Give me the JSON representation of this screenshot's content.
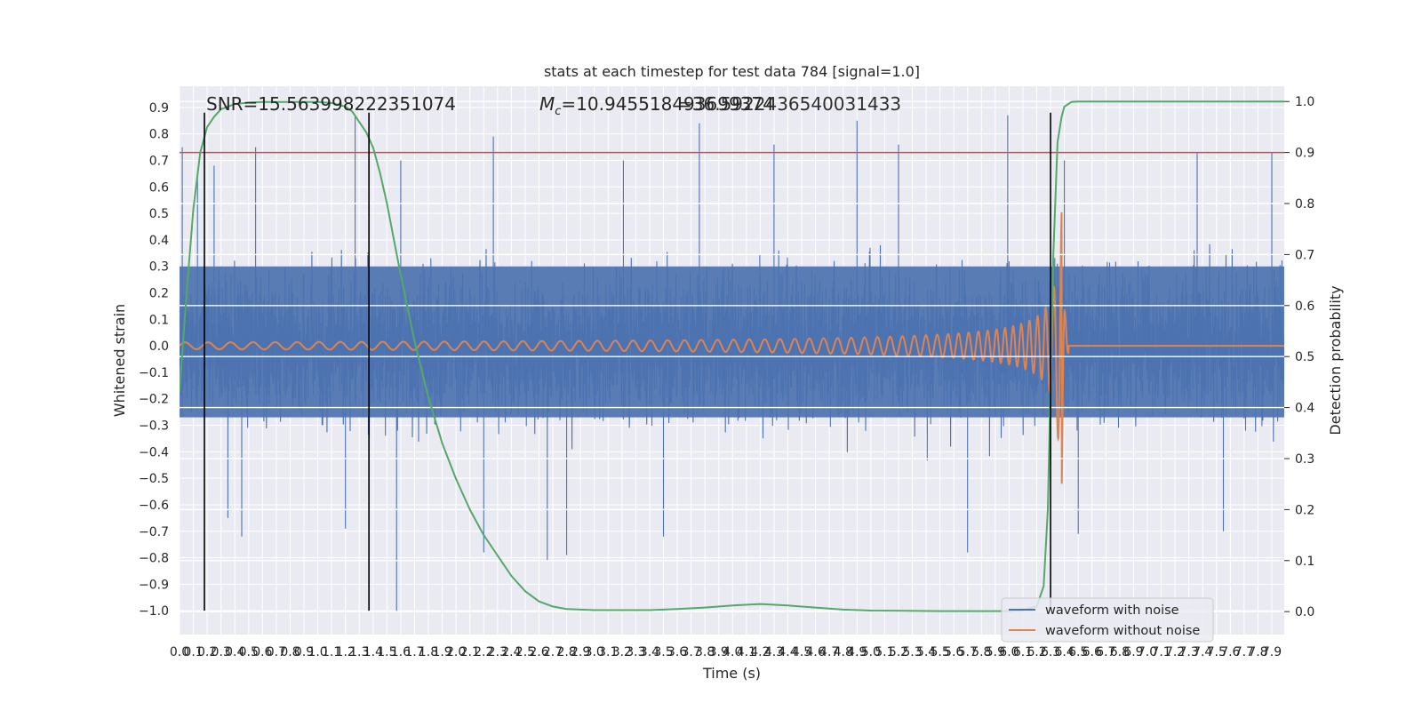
{
  "chart_data": {
    "type": "line",
    "title": "stats at each timestep for test data 784 [signal=1.0]",
    "xlabel": "Time (s)",
    "ylabel": "Whitened strain",
    "y2label": "Detection probability",
    "xlim": [
      0.0,
      7.99
    ],
    "ylim": [
      -1.09,
      0.98
    ],
    "y2lim": [
      -0.045,
      1.03
    ],
    "xticks": [
      0.0,
      0.1,
      0.2,
      0.3,
      0.4,
      0.5,
      0.6,
      0.7,
      0.8,
      0.9,
      1.0,
      1.1,
      1.2,
      1.3,
      1.4,
      1.5,
      1.6,
      1.7,
      1.8,
      1.9,
      2.0,
      2.1,
      2.2,
      2.3,
      2.4,
      2.5,
      2.6,
      2.7,
      2.8,
      2.9,
      3.0,
      3.1,
      3.2,
      3.3,
      3.4,
      3.5,
      3.6,
      3.7,
      3.8,
      3.9,
      4.0,
      4.1,
      4.2,
      4.3,
      4.4,
      4.5,
      4.6,
      4.7,
      4.8,
      4.9,
      5.0,
      5.1,
      5.2,
      5.3,
      5.4,
      5.5,
      5.6,
      5.7,
      5.8,
      5.9,
      6.0,
      6.1,
      6.2,
      6.3,
      6.4,
      6.5,
      6.6,
      6.7,
      6.8,
      6.9,
      7.0,
      7.1,
      7.2,
      7.3,
      7.4,
      7.5,
      7.6,
      7.7,
      7.8,
      7.9
    ],
    "xtick_labels": [
      "0.0",
      "0.1",
      "0.2",
      "0.3",
      "0.4",
      "0.5",
      "0.6",
      "0.7",
      "0.8",
      "0.9",
      "1.0",
      "1.1",
      "1.2",
      "1.3",
      "1.4",
      "1.5",
      "1.6",
      "1.7",
      "1.8",
      "1.9",
      "2.0",
      "2.1",
      "2.2",
      "2.3",
      "2.4",
      "2.5",
      "2.6",
      "2.7",
      "2.8",
      "2.9",
      "3.0",
      "3.1",
      "3.2",
      "3.3",
      "3.4",
      "3.5",
      "3.6",
      "3.7",
      "3.8",
      "3.9",
      "4.0",
      "4.1",
      "4.2",
      "4.3",
      "4.4",
      "4.5",
      "4.6",
      "4.7",
      "4.8",
      "4.9",
      "5.0",
      "5.1",
      "5.2",
      "5.3",
      "5.4",
      "5.5",
      "5.6",
      "5.7",
      "5.8",
      "5.9",
      "6.0",
      "6.1",
      "6.2",
      "6.3",
      "6.4",
      "6.5",
      "6.6",
      "6.7",
      "6.8",
      "6.9",
      "7.0",
      "7.1",
      "7.2",
      "7.3",
      "7.4",
      "7.5",
      "7.6",
      "7.7",
      "7.8",
      "7.9"
    ],
    "yticks": [
      -1.0,
      -0.9,
      -0.8,
      -0.7,
      -0.6,
      -0.5,
      -0.4,
      -0.3,
      -0.2,
      -0.1,
      0.0,
      0.1,
      0.2,
      0.3,
      0.4,
      0.5,
      0.6,
      0.7,
      0.8,
      0.9
    ],
    "ytick_labels": [
      "−1.0",
      "−0.9",
      "−0.8",
      "−0.7",
      "−0.6",
      "−0.5",
      "−0.4",
      "−0.3",
      "−0.2",
      "−0.1",
      "0.0",
      "0.1",
      "0.2",
      "0.3",
      "0.4",
      "0.5",
      "0.6",
      "0.7",
      "0.8",
      "0.9"
    ],
    "y2ticks": [
      0.0,
      0.1,
      0.2,
      0.3,
      0.4,
      0.5,
      0.6,
      0.7,
      0.8,
      0.9,
      1.0
    ],
    "y2tick_labels": [
      "0.0",
      "0.1",
      "0.2",
      "0.3",
      "0.4",
      "0.5",
      "0.6",
      "0.7",
      "0.8",
      "0.9",
      "1.0"
    ],
    "annotations": {
      "snr": "SNR=15.563998222351074",
      "mc_symbol": "M",
      "mc_sub": "c",
      "mc_value": "=10.945518493699374",
      "mc_overlap": "=36.5922436540031433"
    },
    "threshold": {
      "y2": 0.9,
      "color": "#c44e52"
    },
    "vertical_markers": [
      0.18,
      1.37,
      6.3
    ],
    "vertical_marker_range": [
      -1.0,
      0.88
    ],
    "noisy_waveform": {
      "name": "waveform with noise",
      "color": "#4c72b0",
      "envelope": [
        0.3,
        -0.27
      ],
      "sample_peaks": [
        {
          "x": 0.02,
          "y": 0.75
        },
        {
          "x": 0.13,
          "y": 0.65
        },
        {
          "x": 0.25,
          "y": 0.68
        },
        {
          "x": 0.55,
          "y": 0.75
        },
        {
          "x": 1.27,
          "y": 0.87
        },
        {
          "x": 1.6,
          "y": 0.7
        },
        {
          "x": 2.27,
          "y": 0.79
        },
        {
          "x": 3.21,
          "y": 0.7
        },
        {
          "x": 3.76,
          "y": 0.84
        },
        {
          "x": 4.3,
          "y": 0.76
        },
        {
          "x": 4.9,
          "y": 0.85
        },
        {
          "x": 5.2,
          "y": 0.76
        },
        {
          "x": 5.99,
          "y": 0.87
        },
        {
          "x": 6.4,
          "y": 0.7
        },
        {
          "x": 7.36,
          "y": 0.73
        },
        {
          "x": 7.9,
          "y": 0.73
        }
      ],
      "sample_troughs": [
        {
          "x": 0.35,
          "y": -0.65
        },
        {
          "x": 0.45,
          "y": -0.72
        },
        {
          "x": 1.2,
          "y": -0.69
        },
        {
          "x": 1.57,
          "y": -1.0
        },
        {
          "x": 2.2,
          "y": -0.78
        },
        {
          "x": 2.66,
          "y": -0.81
        },
        {
          "x": 2.8,
          "y": -0.79
        },
        {
          "x": 3.5,
          "y": -0.72
        },
        {
          "x": 5.7,
          "y": -0.78
        },
        {
          "x": 6.5,
          "y": -0.71
        },
        {
          "x": 7.55,
          "y": -0.7
        }
      ]
    },
    "clean_waveform": {
      "name": "waveform without noise",
      "color": "#dd8452",
      "chirp_start_s": 0.0,
      "merger_s": 6.38,
      "start_amplitude": 0.013,
      "peak_amplitude": 0.52,
      "trough_at_merger": -0.56,
      "start_freq_hz": 30,
      "end_freq_hz": 85
    },
    "detection_probability": {
      "name": "Detection probability",
      "color": "#55a868",
      "x": [
        0.0,
        0.05,
        0.1,
        0.15,
        0.2,
        0.25,
        0.3,
        0.35,
        0.4,
        0.5,
        0.6,
        0.7,
        0.8,
        0.9,
        1.0,
        1.1,
        1.2,
        1.25,
        1.3,
        1.35,
        1.4,
        1.45,
        1.5,
        1.55,
        1.6,
        1.7,
        1.8,
        1.9,
        2.0,
        2.1,
        2.2,
        2.3,
        2.4,
        2.5,
        2.6,
        2.7,
        2.8,
        3.0,
        3.2,
        3.4,
        3.6,
        3.8,
        4.0,
        4.2,
        4.4,
        4.6,
        4.8,
        5.0,
        5.5,
        6.0,
        6.1,
        6.2,
        6.25,
        6.28,
        6.3,
        6.32,
        6.35,
        6.38,
        6.4,
        6.45,
        6.5,
        6.6,
        7.0,
        7.5,
        7.99
      ],
      "values": [
        0.43,
        0.62,
        0.79,
        0.9,
        0.95,
        0.97,
        0.985,
        0.99,
        0.995,
        0.998,
        0.999,
        0.999,
        0.999,
        0.999,
        0.999,
        0.997,
        0.99,
        0.98,
        0.96,
        0.94,
        0.91,
        0.86,
        0.8,
        0.73,
        0.66,
        0.53,
        0.42,
        0.33,
        0.26,
        0.2,
        0.15,
        0.11,
        0.07,
        0.04,
        0.02,
        0.01,
        0.005,
        0.003,
        0.003,
        0.003,
        0.005,
        0.008,
        0.012,
        0.015,
        0.012,
        0.008,
        0.004,
        0.002,
        0.001,
        0.001,
        0.003,
        0.01,
        0.05,
        0.2,
        0.45,
        0.7,
        0.92,
        0.97,
        0.99,
        0.999,
        1.0,
        1.0,
        1.0,
        1.0,
        1.0
      ]
    },
    "legend": {
      "position": "lower-right",
      "entries": [
        {
          "label": "waveform with noise",
          "color": "#4c72b0"
        },
        {
          "label": "waveform without noise",
          "color": "#dd8452"
        }
      ]
    },
    "style": {
      "plot_bg": "#eaeaf2",
      "grid": "#ffffff",
      "marker_line": "#000000"
    }
  }
}
